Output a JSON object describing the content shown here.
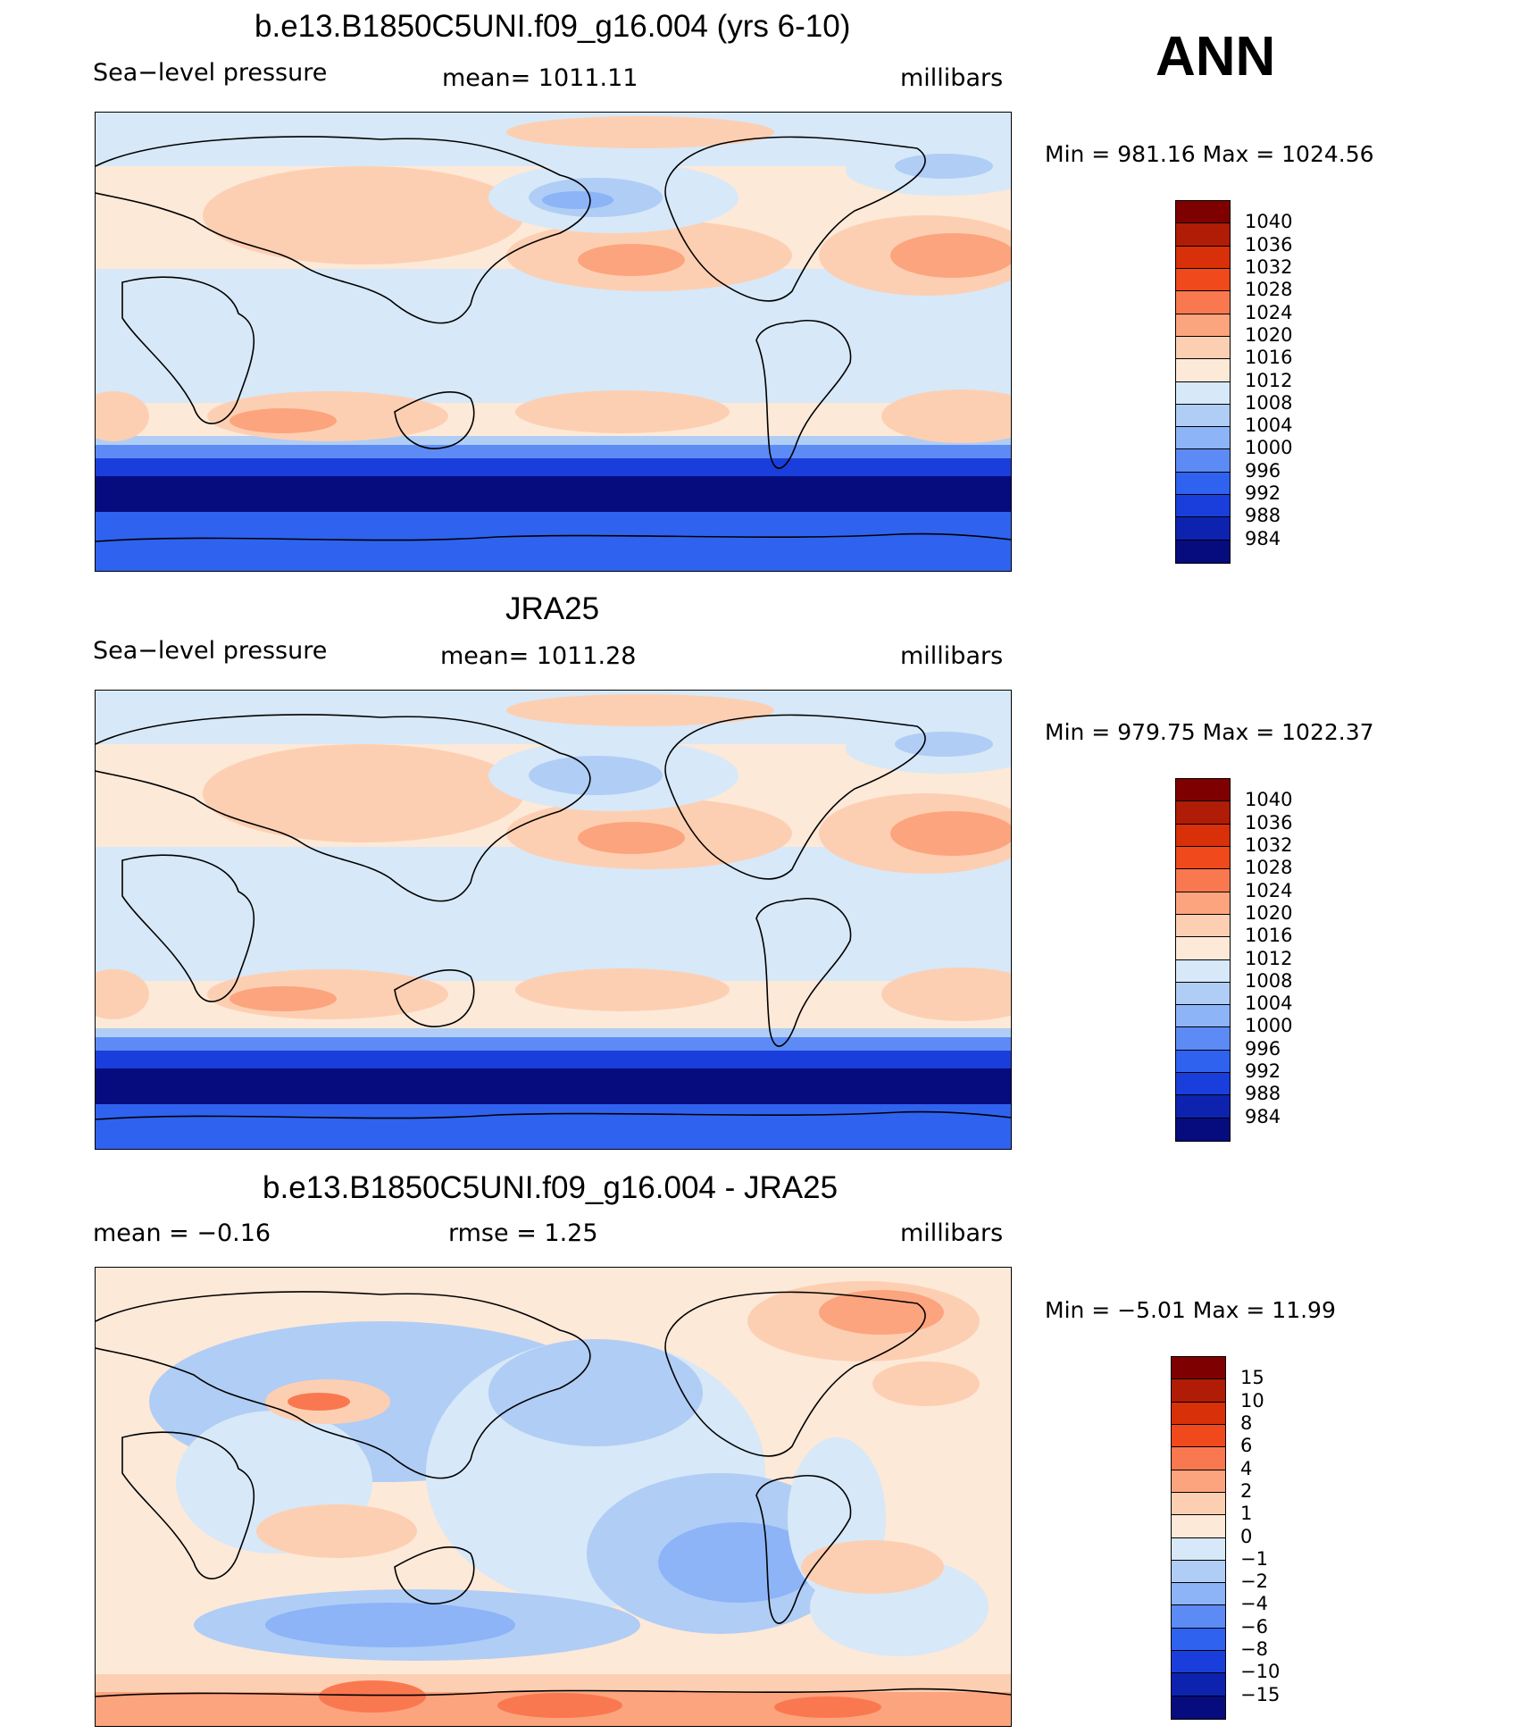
{
  "season": "ANN",
  "panels": [
    {
      "title": "b.e13.B1850C5UNI.f09_g16.004 (yrs 6-10)",
      "left_label": "Sea−level pressure",
      "center_label": "mean=  1011.11",
      "units": "millibars",
      "minmax": "Min  =  981.16  Max  =  1024.56",
      "colorbar": {
        "levels": [
          "1040",
          "1036",
          "1032",
          "1028",
          "1024",
          "1020",
          "1016",
          "1012",
          "1008",
          "1004",
          "1000",
          "996",
          "992",
          "988",
          "984"
        ],
        "colors": [
          "#7f0000",
          "#b01c05",
          "#d83008",
          "#f0491c",
          "#fa7850",
          "#fca47e",
          "#fdcfb2",
          "#fde9d8",
          "#d7e8f8",
          "#b0cdf5",
          "#8cb4f7",
          "#5d8bf5",
          "#2f62ef",
          "#1a3edb",
          "#0d23b0",
          "#060c7e"
        ]
      },
      "field": "control"
    },
    {
      "title": "JRA25",
      "left_label": "Sea−level pressure",
      "center_label": "mean=  1011.28",
      "units": "millibars",
      "minmax": "Min  =  979.75  Max  =  1022.37",
      "colorbar": {
        "levels": [
          "1040",
          "1036",
          "1032",
          "1028",
          "1024",
          "1020",
          "1016",
          "1012",
          "1008",
          "1004",
          "1000",
          "996",
          "992",
          "988",
          "984"
        ],
        "colors": [
          "#7f0000",
          "#b01c05",
          "#d83008",
          "#f0491c",
          "#fa7850",
          "#fca47e",
          "#fdcfb2",
          "#fde9d8",
          "#d7e8f8",
          "#b0cdf5",
          "#8cb4f7",
          "#5d8bf5",
          "#2f62ef",
          "#1a3edb",
          "#0d23b0",
          "#060c7e"
        ]
      },
      "field": "obs"
    },
    {
      "title": "b.e13.B1850C5UNI.f09_g16.004 - JRA25",
      "left_label": "mean  =    −0.16",
      "center_label": "rmse  =     1.25",
      "units": "millibars",
      "minmax": "Min  =   −5.01  Max  =    11.99",
      "colorbar": {
        "levels": [
          "15",
          "10",
          "8",
          "6",
          "4",
          "2",
          "1",
          "0",
          "−1",
          "−2",
          "−4",
          "−6",
          "−8",
          "−10",
          "−15"
        ],
        "colors": [
          "#7f0000",
          "#b01c05",
          "#d83008",
          "#f0491c",
          "#fa7850",
          "#fca47e",
          "#fdcfb2",
          "#fde9d8",
          "#d7e8f8",
          "#b0cdf5",
          "#8cb4f7",
          "#5d8bf5",
          "#2f62ef",
          "#1a3edb",
          "#0d23b0",
          "#060c7e"
        ]
      },
      "field": "diff"
    }
  ]
}
